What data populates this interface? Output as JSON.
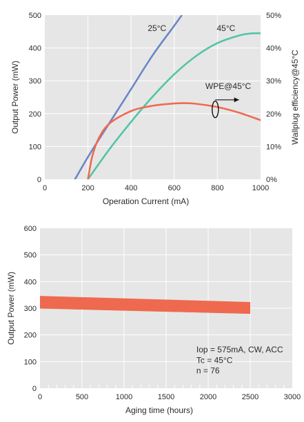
{
  "chart_data": [
    {
      "type": "line",
      "title": "",
      "xlabel": "Operation Current (mA)",
      "ylabel": "Output Power (mW)",
      "y2label": "Wallplug efficiency@45°C",
      "xlim": [
        0,
        1000
      ],
      "ylim": [
        0,
        500
      ],
      "y2lim": [
        0,
        50
      ],
      "x_ticks": [
        0,
        200,
        400,
        600,
        800,
        1000
      ],
      "y_ticks": [
        0,
        100,
        200,
        300,
        400,
        500
      ],
      "y2_ticks": [
        "0%",
        "10%",
        "20%",
        "30%",
        "40%",
        "50%"
      ],
      "grid": true,
      "colors": {
        "background": "#e6e6e6",
        "grid": "#ffffff"
      },
      "series": [
        {
          "name": "25°C",
          "color": "#6a86c8",
          "axis": "left",
          "x": [
            140,
            200,
            300,
            400,
            500,
            600,
            640
          ],
          "y": [
            0,
            68,
            172,
            275,
            378,
            468,
            505
          ]
        },
        {
          "name": "45°C",
          "color": "#52c4a6",
          "axis": "left",
          "x": [
            200,
            300,
            400,
            500,
            600,
            700,
            800,
            900,
            950,
            1000
          ],
          "y": [
            0,
            92,
            175,
            252,
            320,
            375,
            415,
            438,
            444,
            445
          ]
        },
        {
          "name": "WPE@45°C",
          "color": "#ef6a50",
          "axis": "right",
          "x": [
            200,
            220,
            250,
            300,
            400,
            500,
            600,
            650,
            700,
            800,
            900,
            1000
          ],
          "y": [
            0,
            7,
            12.5,
            17,
            20.8,
            22.4,
            23.1,
            23.2,
            23,
            22,
            20.3,
            18
          ]
        }
      ],
      "annotations": [
        {
          "text": "25°C",
          "x": 520,
          "y": 452
        },
        {
          "text": "45°C",
          "x": 840,
          "y": 452
        },
        {
          "text": "WPE@45°C",
          "x": 850,
          "y": 275
        }
      ]
    },
    {
      "type": "area",
      "title": "",
      "xlabel": "Aging time (hours)",
      "ylabel": "Output Power (mW)",
      "xlim": [
        0,
        3000
      ],
      "ylim": [
        0,
        600
      ],
      "x_ticks": [
        0,
        500,
        1000,
        1500,
        2000,
        2500,
        3000
      ],
      "y_ticks": [
        0,
        100,
        200,
        300,
        400,
        500,
        600
      ],
      "grid": true,
      "colors": {
        "background": "#e6e6e6",
        "grid": "#ffffff",
        "band": "#ef6a50"
      },
      "band": {
        "x": [
          0,
          2500
        ],
        "upper": [
          345,
          322
        ],
        "lower": [
          300,
          280
        ],
        "lines": 76
      },
      "notes": [
        "Iop = 575mA, CW, ACC",
        "Tc = 45°C",
        "n = 76"
      ]
    }
  ]
}
